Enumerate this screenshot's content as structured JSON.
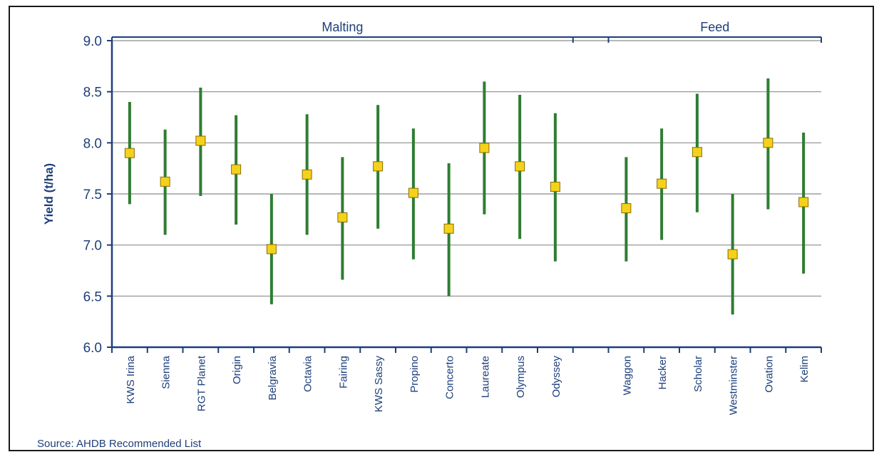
{
  "chart_data": {
    "type": "errorbar",
    "title": "",
    "xlabel": "",
    "ylabel": "Yield (t/ha)",
    "ylim": [
      6.0,
      9.0
    ],
    "yticks": [
      "6.0",
      "6.5",
      "7.0",
      "7.5",
      "8.0",
      "8.5",
      "9.0"
    ],
    "grid": "horizontal",
    "groups": [
      {
        "name": "Malting",
        "categories": [
          "KWS Irina",
          "Sienna",
          "RGT Planet",
          "Origin",
          "Belgravia",
          "Octavia",
          "Fairing",
          "KWS Sassy",
          "Propino",
          "Concerto",
          "Laureate",
          "Olympus",
          "Odyssey"
        ]
      },
      {
        "name": "Feed",
        "categories": [
          "Waggon",
          "Hacker",
          "Scholar",
          "Westminster",
          "Ovation",
          "Kelim"
        ]
      }
    ],
    "categories": [
      "KWS Irina",
      "Sienna",
      "RGT Planet",
      "Origin",
      "Belgravia",
      "Octavia",
      "Fairing",
      "KWS Sassy",
      "Propino",
      "Concerto",
      "Laureate",
      "Olympus",
      "Odyssey",
      "Waggon",
      "Hacker",
      "Scholar",
      "Westminster",
      "Ovation",
      "Kelim"
    ],
    "values": [
      7.9,
      7.62,
      8.02,
      7.74,
      6.96,
      7.69,
      7.27,
      7.77,
      7.51,
      7.16,
      7.95,
      7.77,
      7.57,
      7.36,
      7.6,
      7.91,
      6.91,
      8.0,
      7.42
    ],
    "lower": [
      7.4,
      7.1,
      7.48,
      7.2,
      6.42,
      7.1,
      6.66,
      7.16,
      6.86,
      6.5,
      7.3,
      7.06,
      6.84,
      6.84,
      7.05,
      7.32,
      6.32,
      7.35,
      6.72
    ],
    "upper": [
      8.4,
      8.13,
      8.54,
      8.27,
      7.5,
      8.28,
      7.86,
      8.37,
      8.14,
      7.8,
      8.6,
      8.47,
      8.29,
      7.86,
      8.14,
      8.48,
      7.5,
      8.63,
      8.1
    ],
    "colors": {
      "bar": "#2e7d32",
      "marker": "#f5d21a",
      "marker_edge": "#8a6d00",
      "axis": "#1d3f7a",
      "grid": "#8c8c8c"
    }
  },
  "footer": {
    "source": "Source: AHDB Recommended List"
  }
}
